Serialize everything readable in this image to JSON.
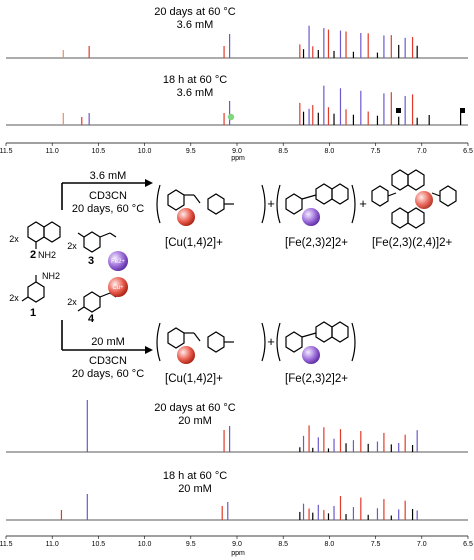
{
  "spectra_top": [
    {
      "condition": "20 days at 60 °C",
      "concentration": "3.6 mM",
      "id": "s1"
    },
    {
      "condition": "18 h at 60 °C",
      "concentration": "3.6 mM",
      "id": "s2"
    }
  ],
  "spectra_bottom": [
    {
      "condition": "20 days at 60 °C",
      "concentration": "20 mM",
      "id": "s3"
    },
    {
      "condition": "18 h at 60 °C",
      "concentration": "20 mM",
      "id": "s4"
    }
  ],
  "axis": {
    "unit": "ppm",
    "ticks": [
      "11.5",
      "11.0",
      "10.5",
      "10.0",
      "9.5",
      "9.0",
      "8.5",
      "8.0",
      "7.5",
      "7.0",
      "6.5"
    ]
  },
  "scheme": {
    "row1": {
      "conc": "3.6 mM",
      "solvent": "CD3CN",
      "conditions": "20 days, 60 °C"
    },
    "row2": {
      "conc": "20 mM",
      "solvent": "CD3CN",
      "conditions": "20 days, 60 °C"
    },
    "reactants": {
      "amine2": {
        "count": "2x",
        "label": "2",
        "group": "NH2"
      },
      "aldehyde3": {
        "count": "2x",
        "label": "3"
      },
      "amine1": {
        "count": "2x",
        "label": "1",
        "group": "NH2"
      },
      "aldehyde4": {
        "count": "2x",
        "label": "4"
      }
    },
    "metals": {
      "fe": "Fe2+",
      "cu": "Cu+"
    },
    "products_row1": [
      "[Cu(1,4)2]+",
      "[Fe(2,3)2]2+",
      "[Fe(2,3)(2,4)]2+"
    ],
    "products_row2": [
      "[Cu(1,4)2]+",
      "[Fe(2,3)2]2+"
    ],
    "plus": "+"
  },
  "colors": {
    "red": "#e23a2a",
    "blue": "#6a5acd",
    "black": "#000000",
    "orange": "#ef8a62",
    "green": "#7fd67f"
  }
}
